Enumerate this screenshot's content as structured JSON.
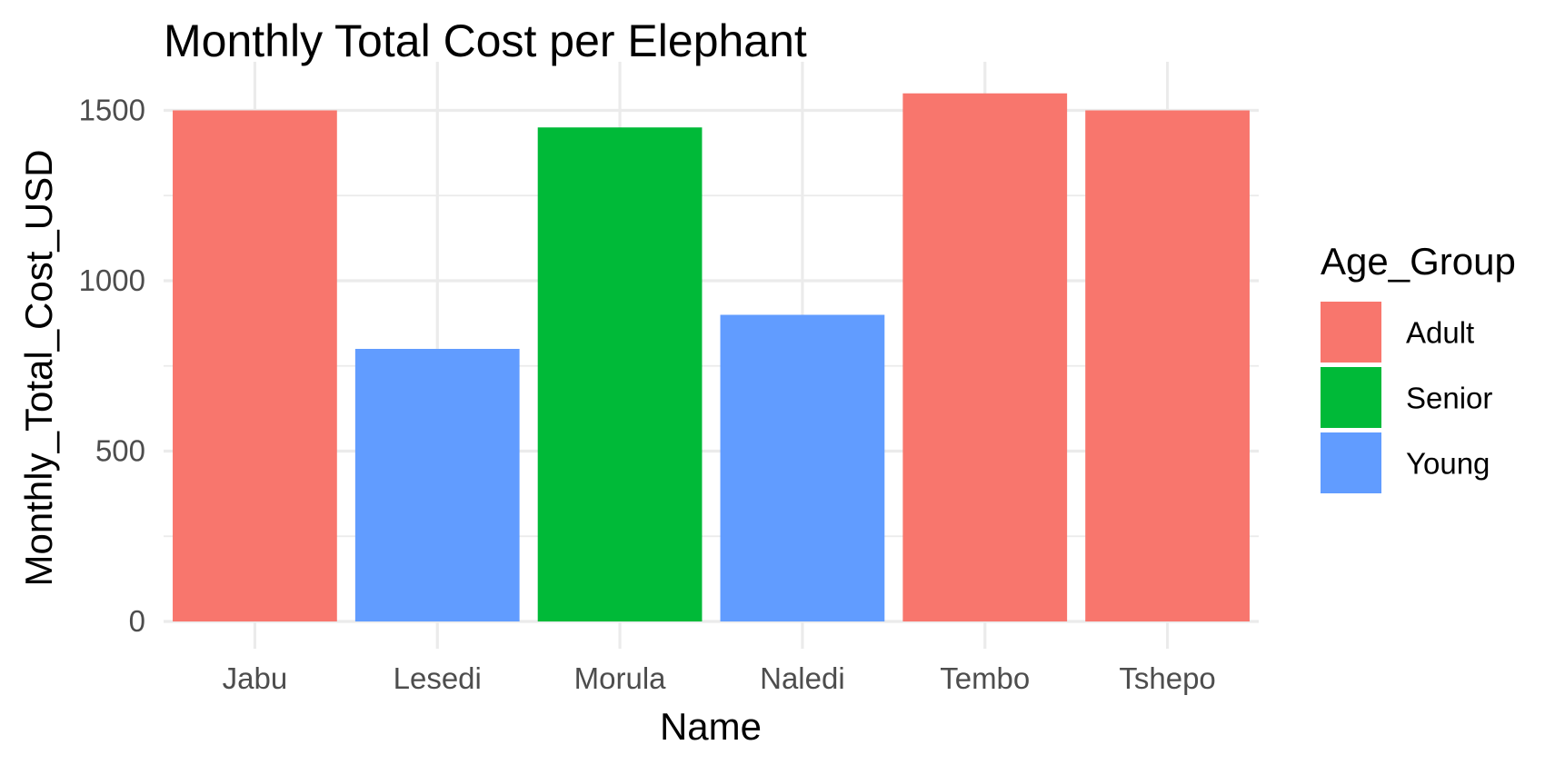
{
  "chart_data": {
    "type": "bar",
    "title": "Monthly Total Cost per Elephant",
    "xlabel": "Name",
    "ylabel": "Monthly_Total_Cost_USD",
    "categories": [
      "Jabu",
      "Lesedi",
      "Morula",
      "Naledi",
      "Tembo",
      "Tshepo"
    ],
    "values": [
      1500,
      800,
      1450,
      900,
      1550,
      1500
    ],
    "groups": [
      "Adult",
      "Young",
      "Senior",
      "Young",
      "Adult",
      "Adult"
    ],
    "ylim": [
      0,
      1600
    ],
    "yticks": [
      0,
      500,
      1000,
      1500
    ],
    "grid": true,
    "legend": {
      "title": "Age_Group",
      "placement": "right",
      "entries": [
        {
          "name": "Adult",
          "color": "#F8766D"
        },
        {
          "name": "Senior",
          "color": "#00BA38"
        },
        {
          "name": "Young",
          "color": "#619CFF"
        }
      ]
    }
  }
}
